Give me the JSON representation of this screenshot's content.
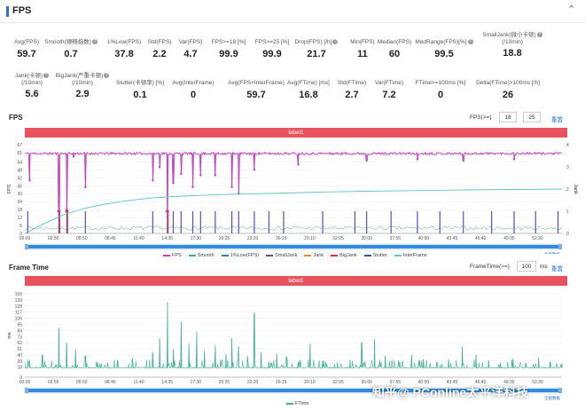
{
  "header": {
    "title": "FPS"
  },
  "stats_row1": [
    {
      "label": "Avg(FPS)",
      "value": "59.7",
      "q": false
    },
    {
      "label": "Smooth(顺畅指数)",
      "value": "0.7",
      "q": true
    },
    {
      "label": "1%Low(FPS)",
      "value": "37.8",
      "q": false
    },
    {
      "label": "Std(FPS)",
      "value": "2.2",
      "q": false
    },
    {
      "label": "Var(FPS)",
      "value": "4.7",
      "q": false
    },
    {
      "label": "FPS>=18 [%]",
      "value": "99.9",
      "q": false
    },
    {
      "label": "FPS>=25 [%]",
      "value": "99.9",
      "q": false
    },
    {
      "label": "Drop(FPS) [/h]",
      "value": "21.7",
      "q": true
    },
    {
      "label": "Min(FPS)",
      "value": "11",
      "q": false
    },
    {
      "label": "Median(FPS)",
      "value": "60",
      "q": false
    },
    {
      "label": "MedRange(FPS)[%]",
      "value": "99.5",
      "q": true
    },
    {
      "label": "SmallJank(微小卡顿)",
      "label2": "(/10min)",
      "value": "18.8",
      "q": true
    }
  ],
  "stats_row2": [
    {
      "label": "Jank(卡顿)",
      "label2": "(/10min)",
      "value": "5.6",
      "q": true
    },
    {
      "label": "BigJank(严重卡顿)",
      "label2": "(/10min)",
      "value": "2.9",
      "q": true
    },
    {
      "label": "Stutter(卡顿率) [%]",
      "value": "0.1",
      "q": false
    },
    {
      "label": "Avg(InterFrame)",
      "value": "0",
      "q": false
    },
    {
      "label": "Avg(FPS+InterFrame)",
      "value": "59.7",
      "q": false
    },
    {
      "label": "Avg(FTime) [ms]",
      "value": "16.8",
      "q": false
    },
    {
      "label": "Std(FTime)",
      "value": "2.7",
      "q": false
    },
    {
      "label": "Var(FTime)",
      "value": "7.2",
      "q": false
    },
    {
      "label": "FTime>=100ms [%]",
      "value": "0",
      "q": false
    },
    {
      "label": "Delta(FTime)>100ms [/h]",
      "value": "26",
      "q": false
    }
  ],
  "fps_section": {
    "title": "FPS",
    "control_label": "FPS(>=)",
    "threshold1": "18",
    "threshold2": "25",
    "reset": "重置",
    "band_label": "label1"
  },
  "ftime_section": {
    "title": "Frame Time",
    "control_label": "FrameTime(>=)",
    "threshold": "100",
    "unit": "ms",
    "reset": "重置",
    "band_label": "label1"
  },
  "scroll_label": "全部数据",
  "watermark_text": "知乎@ PConline太平洋科技",
  "colors": {
    "fps": "#c23fbf",
    "smooth": "#3cb371",
    "low1": "#2a7fbf",
    "smalljank": "#5b4bc4",
    "jank": "#e6883a",
    "bigjank": "#d8342f",
    "stutter": "#1f5fbf",
    "interframe": "#5fc6c8",
    "ftime": "#3fae93",
    "band": "#e8535e"
  },
  "chart_data": [
    {
      "type": "line",
      "title": "FPS",
      "ylabel": "FPS",
      "ylim": [
        0,
        67
      ],
      "yticks": [
        0,
        6,
        12,
        18,
        24,
        30,
        36,
        42,
        48,
        54,
        61,
        67
      ],
      "y2label": "Jank",
      "y2lim": [
        0,
        4
      ],
      "y2ticks": [
        0,
        1,
        2,
        3,
        4
      ],
      "xlabels": [
        "00:00",
        "02:55",
        "05:50",
        "08:45",
        "11:40",
        "14:35",
        "17:30",
        "20:25",
        "23:20",
        "26:15",
        "29:10",
        "32:05",
        "35:00",
        "37:55",
        "40:50",
        "43:45",
        "46:40",
        "49:35",
        "52:30"
      ],
      "grid": true,
      "legend": [
        "FPS",
        "Smooth",
        "1%Low(FPS)",
        "SmallJank",
        "Jank",
        "BigJank",
        "Stutter",
        "InterFrame"
      ],
      "legend_position": "bottom",
      "fps_baseline": 60,
      "fps_dips": [
        {
          "t": 0.5,
          "v": 40
        },
        {
          "t": 3.5,
          "v": 12
        },
        {
          "t": 4.3,
          "v": 18
        },
        {
          "t": 5.0,
          "v": 58
        },
        {
          "t": 6.2,
          "v": 35
        },
        {
          "t": 13.1,
          "v": 40
        },
        {
          "t": 13.8,
          "v": 50
        },
        {
          "t": 14.6,
          "v": 12
        },
        {
          "t": 15.2,
          "v": 38
        },
        {
          "t": 16.0,
          "v": 45
        },
        {
          "t": 17.2,
          "v": 35
        },
        {
          "t": 18.0,
          "v": 44
        },
        {
          "t": 19.5,
          "v": 44
        },
        {
          "t": 21.2,
          "v": 35
        },
        {
          "t": 21.9,
          "v": 30
        },
        {
          "t": 23.5,
          "v": 48
        },
        {
          "t": 28.0,
          "v": 52
        },
        {
          "t": 35.0,
          "v": 55
        },
        {
          "t": 40.2,
          "v": 56
        },
        {
          "t": 44.9,
          "v": 55
        },
        {
          "t": 50.1,
          "v": 56
        }
      ],
      "interframe_curve": [
        {
          "t": 0,
          "v": 0
        },
        {
          "t": 2,
          "v": 0.45
        },
        {
          "t": 4,
          "v": 0.85
        },
        {
          "t": 6,
          "v": 1.12
        },
        {
          "t": 8,
          "v": 1.3
        },
        {
          "t": 10,
          "v": 1.45
        },
        {
          "t": 13,
          "v": 1.6
        },
        {
          "t": 16,
          "v": 1.68
        },
        {
          "t": 20,
          "v": 1.75
        },
        {
          "t": 25,
          "v": 1.8
        },
        {
          "t": 30,
          "v": 1.86
        },
        {
          "t": 35,
          "v": 1.9
        },
        {
          "t": 40,
          "v": 1.93
        },
        {
          "t": 45,
          "v": 1.96
        },
        {
          "t": 50,
          "v": 1.98
        },
        {
          "t": 55,
          "v": 2.0
        }
      ],
      "smalljank_events": [
        {
          "t": 0.3,
          "v": 1
        },
        {
          "t": 3.5,
          "v": 2
        },
        {
          "t": 4.3,
          "v": 2
        },
        {
          "t": 6.2,
          "v": 1
        },
        {
          "t": 13.1,
          "v": 1
        },
        {
          "t": 14.6,
          "v": 2
        },
        {
          "t": 15.2,
          "v": 1
        },
        {
          "t": 16.0,
          "v": 1
        },
        {
          "t": 17.2,
          "v": 1
        },
        {
          "t": 18.0,
          "v": 1
        },
        {
          "t": 19.5,
          "v": 1
        },
        {
          "t": 21.2,
          "v": 1
        },
        {
          "t": 21.9,
          "v": 1
        },
        {
          "t": 23.5,
          "v": 1
        },
        {
          "t": 25.0,
          "v": 1
        },
        {
          "t": 26.5,
          "v": 1
        },
        {
          "t": 30.5,
          "v": 1
        },
        {
          "t": 33.8,
          "v": 1
        },
        {
          "t": 35.0,
          "v": 1
        },
        {
          "t": 37.5,
          "v": 1
        },
        {
          "t": 40.2,
          "v": 1
        },
        {
          "t": 42.5,
          "v": 1
        },
        {
          "t": 44.9,
          "v": 1
        },
        {
          "t": 47.8,
          "v": 1
        },
        {
          "t": 50.1,
          "v": 1
        },
        {
          "t": 52.3,
          "v": 1
        },
        {
          "t": 54.6,
          "v": 1
        }
      ],
      "bigjank_events": [
        {
          "t": 3.5,
          "v": 1
        },
        {
          "t": 4.3,
          "v": 1
        },
        {
          "t": 14.6,
          "v": 1
        }
      ]
    },
    {
      "type": "line",
      "title": "Frame Time",
      "ylabel": "ms",
      "ylim": [
        0,
        150
      ],
      "yticks": [
        0,
        18,
        29,
        40,
        51,
        62,
        73,
        84,
        95,
        106,
        117,
        128,
        139,
        150
      ],
      "ytick_labels": [
        "0",
        "18",
        "29",
        "40",
        "51",
        "62",
        "73",
        "84",
        "95",
        "106",
        "117",
        "128",
        "139",
        "150"
      ],
      "xlabels": [
        "00:00",
        "02:55",
        "05:50",
        "08:45",
        "11:40",
        "14:35",
        "17:30",
        "20:25",
        "23:20",
        "26:15",
        "29:10",
        "32:05",
        "35:00",
        "37:55",
        "40:50",
        "43:45",
        "46:40",
        "49:35",
        "52:30"
      ],
      "grid": true,
      "legend": [
        "FTime"
      ],
      "legend_position": "bottom",
      "ftime_baseline": 16.7,
      "ftime_spikes": [
        {
          "t": 0.5,
          "v": 30
        },
        {
          "t": 1.8,
          "v": 40
        },
        {
          "t": 3.5,
          "v": 88
        },
        {
          "t": 4.3,
          "v": 62
        },
        {
          "t": 5.2,
          "v": 50
        },
        {
          "t": 6.2,
          "v": 38
        },
        {
          "t": 7.8,
          "v": 25
        },
        {
          "t": 9.5,
          "v": 30
        },
        {
          "t": 11.0,
          "v": 34
        },
        {
          "t": 13.1,
          "v": 45
        },
        {
          "t": 13.8,
          "v": 70
        },
        {
          "t": 14.6,
          "v": 135
        },
        {
          "t": 15.2,
          "v": 50
        },
        {
          "t": 16.0,
          "v": 100
        },
        {
          "t": 16.8,
          "v": 60
        },
        {
          "t": 17.6,
          "v": 82
        },
        {
          "t": 18.4,
          "v": 48
        },
        {
          "t": 19.5,
          "v": 58
        },
        {
          "t": 20.6,
          "v": 42
        },
        {
          "t": 21.2,
          "v": 70
        },
        {
          "t": 21.9,
          "v": 55
        },
        {
          "t": 22.8,
          "v": 38
        },
        {
          "t": 23.5,
          "v": 115
        },
        {
          "t": 24.2,
          "v": 45
        },
        {
          "t": 25.0,
          "v": 28
        },
        {
          "t": 25.8,
          "v": 42
        },
        {
          "t": 26.8,
          "v": 36
        },
        {
          "t": 28.0,
          "v": 27
        },
        {
          "t": 29.2,
          "v": 60
        },
        {
          "t": 30.5,
          "v": 30
        },
        {
          "t": 32.0,
          "v": 26
        },
        {
          "t": 33.3,
          "v": 31
        },
        {
          "t": 34.5,
          "v": 62
        },
        {
          "t": 35.8,
          "v": 68
        },
        {
          "t": 36.9,
          "v": 38
        },
        {
          "t": 38.4,
          "v": 28
        },
        {
          "t": 39.6,
          "v": 40
        },
        {
          "t": 40.8,
          "v": 32
        },
        {
          "t": 42.2,
          "v": 27
        },
        {
          "t": 43.4,
          "v": 32
        },
        {
          "t": 44.8,
          "v": 55
        },
        {
          "t": 46.2,
          "v": 40
        },
        {
          "t": 47.5,
          "v": 30
        },
        {
          "t": 48.7,
          "v": 26
        },
        {
          "t": 50.0,
          "v": 33
        },
        {
          "t": 51.3,
          "v": 25
        },
        {
          "t": 52.6,
          "v": 35
        },
        {
          "t": 53.8,
          "v": 28
        },
        {
          "t": 55.0,
          "v": 25
        }
      ]
    }
  ]
}
